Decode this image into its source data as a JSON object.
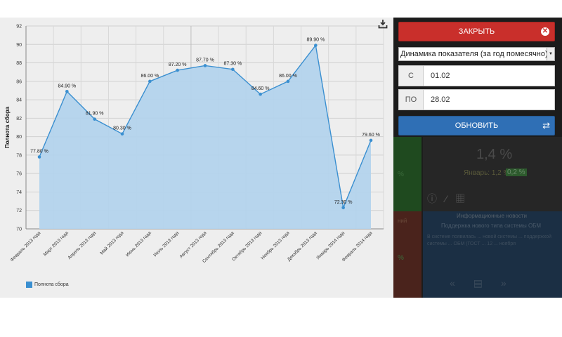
{
  "chart_data": {
    "type": "area",
    "ylabel": "Полнота сбора",
    "ylim": [
      70,
      92
    ],
    "yticks": [
      70,
      72,
      74,
      76,
      78,
      80,
      82,
      84,
      86,
      88,
      90,
      92
    ],
    "categories": [
      "Февраль 2013 года",
      "Март 2013 года",
      "Апрель 2013 года",
      "Май 2013 года",
      "Июнь 2013 года",
      "Июль 2013 года",
      "Август 2013 года",
      "Сентябрь 2013 года",
      "Октябрь 2013 года",
      "Ноябрь 2013 года",
      "Декабрь 2013 года",
      "Январь 2014 года",
      "Февраль 2014 года"
    ],
    "series": [
      {
        "name": "Полнота сбора",
        "values": [
          77.8,
          84.9,
          81.9,
          80.3,
          86.0,
          87.2,
          87.7,
          87.3,
          84.6,
          86.0,
          89.9,
          72.3,
          79.6
        ],
        "labels": [
          "77.80 %",
          "84.90 %",
          "81.90 %",
          "80.30 %",
          "86.00 %",
          "87.20 %",
          "87.70 %",
          "87.30 %",
          "84.60 %",
          "86.00 %",
          "89.90 %",
          "72.30 %",
          "79.60 %"
        ],
        "color": "#3a8fd0",
        "fill": "#b3d3ec"
      }
    ],
    "grid": true,
    "legend": "bottom-left"
  },
  "toolbar": {
    "export_icon": "download-icon"
  },
  "panel": {
    "close_label": "ЗАКРЫТЬ",
    "report_value": "Динамика показателя (за год помесячно)",
    "from_label": "С",
    "from_value": "01.02",
    "to_label": "ПО",
    "to_value": "28.02",
    "refresh_label": "ОБНОВИТЬ"
  },
  "background": {
    "value": "1,4 %",
    "sub": "Январь: 1,2 %",
    "badge": "0,2 %",
    "title": "Информационные новости",
    "text1": "Поддержка нового типа системы ОБМ",
    "para": "В системе появилась ... новой системы ... поддержкой системы ... ОБМ (ГОСТ ... 12 ... ноября",
    "left1": "%",
    "left2": "ний",
    "left3": "%"
  }
}
